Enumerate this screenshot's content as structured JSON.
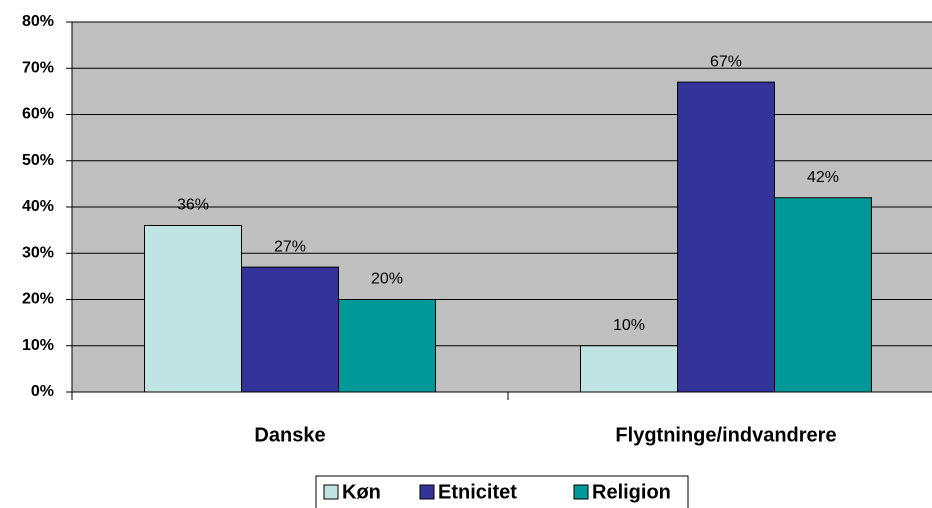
{
  "chart_data": {
    "type": "bar",
    "categories": [
      "Danske",
      "Flygtninge/indvandrere"
    ],
    "series": [
      {
        "name": "Køn",
        "color": "#c0e4e4",
        "values": [
          36,
          10
        ],
        "value_labels": [
          "36%",
          "10%"
        ]
      },
      {
        "name": "Etnicitet",
        "color": "#333399",
        "values": [
          27,
          67
        ],
        "value_labels": [
          "27%",
          "67%"
        ]
      },
      {
        "name": "Religion",
        "color": "#009999",
        "values": [
          20,
          42
        ],
        "value_labels": [
          "20%",
          "42%"
        ]
      }
    ],
    "ylim": [
      0,
      80
    ],
    "yticks": [
      {
        "value": 0,
        "label": "0%"
      },
      {
        "value": 10,
        "label": "10%"
      },
      {
        "value": 20,
        "label": "20%"
      },
      {
        "value": 30,
        "label": "30%"
      },
      {
        "value": 40,
        "label": "40%"
      },
      {
        "value": 50,
        "label": "50%"
      },
      {
        "value": 60,
        "label": "60%"
      },
      {
        "value": 70,
        "label": "70%"
      },
      {
        "value": 80,
        "label": "80%"
      }
    ],
    "grid": true,
    "legend": "bottom"
  }
}
